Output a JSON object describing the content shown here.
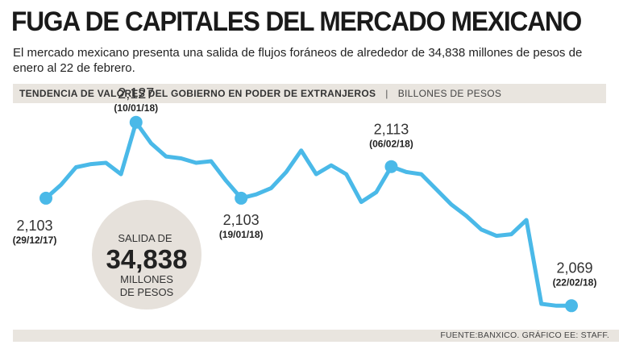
{
  "header": {
    "title": "FUGA DE CAPITALES DEL MERCADO MEXICANO",
    "subtitle": "El mercado mexicano presenta una salida de flujos foráneos de alrededor de 34,838 millones de pesos de enero al 22 de febrero.",
    "chart_title": "TENDENCIA DE VALORES DEL GOBIERNO EN PODER DE EXTRANJEROS",
    "separator": "|",
    "unit": "BILLONES DE PESOS"
  },
  "callout": {
    "line1": "SALIDA DE",
    "value": "34,838",
    "line2": "MILLONES",
    "line3": "DE PESOS"
  },
  "footer": {
    "source": "FUENTE:BANXICO. GRÁFICO EE: STAFF."
  },
  "colors": {
    "line": "#4ab9e8",
    "circle": "#e6e1db",
    "band": "#e9e5df"
  },
  "chart_data": {
    "type": "line",
    "title": "TENDENCIA DE VALORES DEL GOBIERNO EN PODER DE EXTRANJEROS",
    "ylabel": "BILLONES DE PESOS",
    "xlabel": "",
    "x_range": [
      "29/12/17",
      "22/02/18"
    ],
    "ylim": [
      2065,
      2130
    ],
    "series": [
      {
        "name": "Valores del gobierno en poder de extranjeros",
        "values": [
          2103,
          2107.2,
          2112.8,
          2113.8,
          2114.2,
          2110.6,
          2127,
          2120.4,
          2116.2,
          2115.6,
          2114.2,
          2114.7,
          2108.5,
          2103,
          2104.2,
          2106.2,
          2111.3,
          2118.1,
          2110.6,
          2113.4,
          2110.6,
          2101.8,
          2104.9,
          2113,
          2111.3,
          2110.6,
          2105.8,
          2101,
          2097.4,
          2093.1,
          2091.1,
          2091.6,
          2096.1,
          2069.6,
          2069,
          2069
        ]
      }
    ],
    "highlights": [
      {
        "index": 0,
        "value": "2,103",
        "date": "(29/12/17)"
      },
      {
        "index": 6,
        "value": "2,127",
        "date": "(10/01/18)"
      },
      {
        "index": 13,
        "value": "2,103",
        "date": "(19/01/18)"
      },
      {
        "index": 23,
        "value": "2,113",
        "date": "(06/02/18)"
      },
      {
        "index": 35,
        "value": "2,069",
        "date": "(22/02/18)"
      }
    ]
  }
}
